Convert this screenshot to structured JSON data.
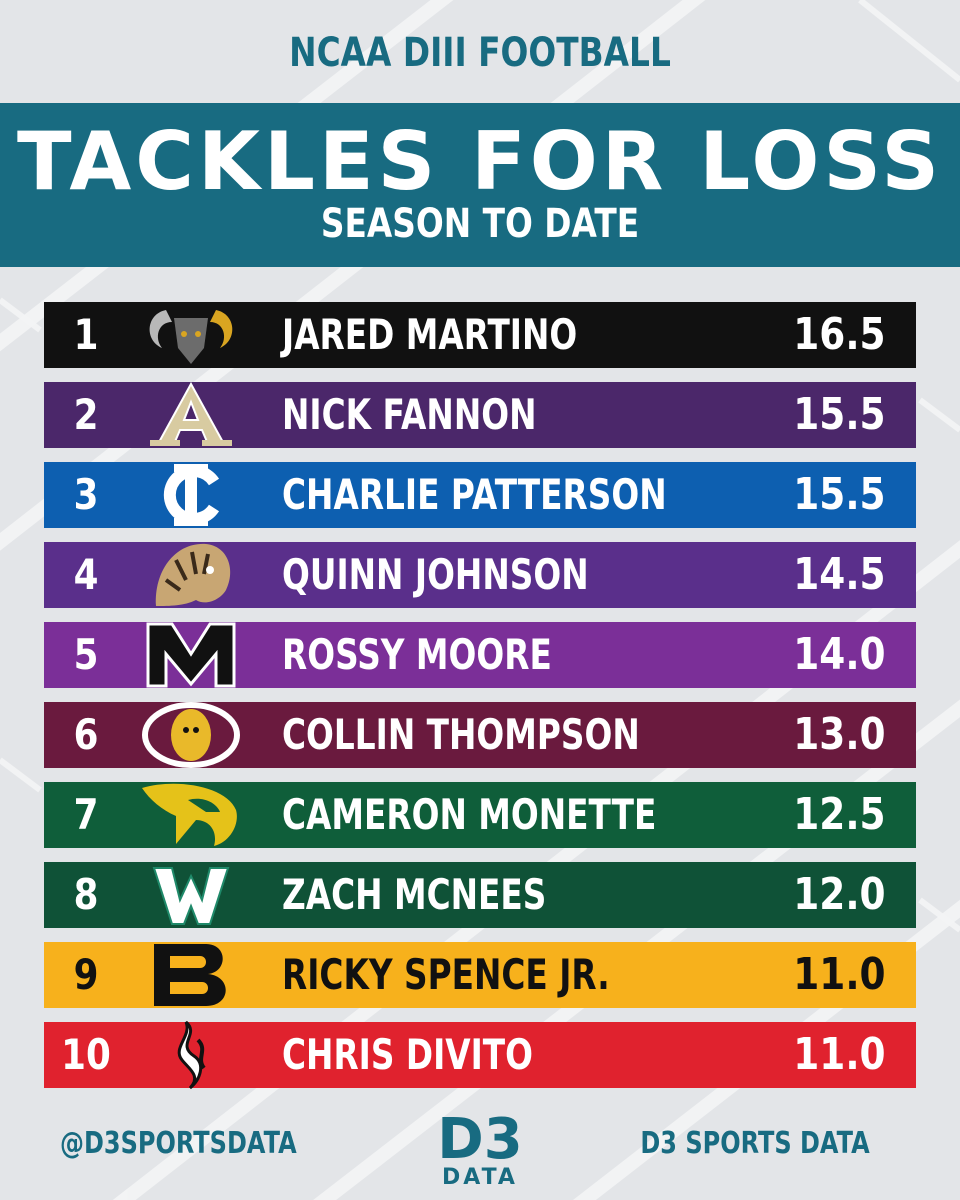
{
  "header": {
    "league": "NCAA DIII FOOTBALL",
    "title": "TACKLES FOR LOSS",
    "subtitle": "SEASON TO DATE"
  },
  "colors": {
    "background": "#e3e5e8",
    "teal": "#186b81",
    "white": "#ffffff"
  },
  "leaders": [
    {
      "rank": "1",
      "name": "JARED MARTINO",
      "value": "16.5",
      "color": "#111111",
      "text_color": "#ffffff",
      "logo": "ram-mascot-icon"
    },
    {
      "rank": "2",
      "name": "NICK FANNON",
      "value": "15.5",
      "color": "#4b276a",
      "text_color": "#ffffff",
      "logo": "letter-a-logo-icon"
    },
    {
      "rank": "3",
      "name": "CHARLIE PATTERSON",
      "value": "15.5",
      "color": "#0d5fb0",
      "text_color": "#ffffff",
      "logo": "ic-monogram-icon"
    },
    {
      "rank": "4",
      "name": "QUINN JOHNSON",
      "value": "14.5",
      "color": "#5a2f8b",
      "text_color": "#ffffff",
      "logo": "tiger-mascot-icon"
    },
    {
      "rank": "5",
      "name": "ROSSY MOORE",
      "value": "14.0",
      "color": "#7b2f98",
      "text_color": "#ffffff",
      "logo": "letter-m-logo-icon"
    },
    {
      "rank": "6",
      "name": "COLLIN THOMPSON",
      "value": "13.0",
      "color": "#6a1a3e",
      "text_color": "#ffffff",
      "logo": "cobber-c-logo-icon"
    },
    {
      "rank": "7",
      "name": "CAMERON MONETTE",
      "value": "12.5",
      "color": "#0f5e3a",
      "text_color": "#ffffff",
      "logo": "eagle-mascot-icon"
    },
    {
      "rank": "8",
      "name": "ZACH MCNEES",
      "value": "12.0",
      "color": "#0f5237",
      "text_color": "#ffffff",
      "logo": "letter-w-logo-icon"
    },
    {
      "rank": "9",
      "name": "RICKY SPENCE JR.",
      "value": "11.0",
      "color": "#f7b11c",
      "text_color": "#111111",
      "logo": "letter-b-logo-icon"
    },
    {
      "rank": "10",
      "name": "CHRIS DIVITO",
      "value": "11.0",
      "color": "#e0222e",
      "text_color": "#ffffff",
      "logo": "flame-logo-icon"
    }
  ],
  "footer": {
    "handle": "@D3SPORTSDATA",
    "brand": "D3 SPORTS DATA",
    "logo_top": "D3",
    "logo_bottom": "DATA"
  }
}
